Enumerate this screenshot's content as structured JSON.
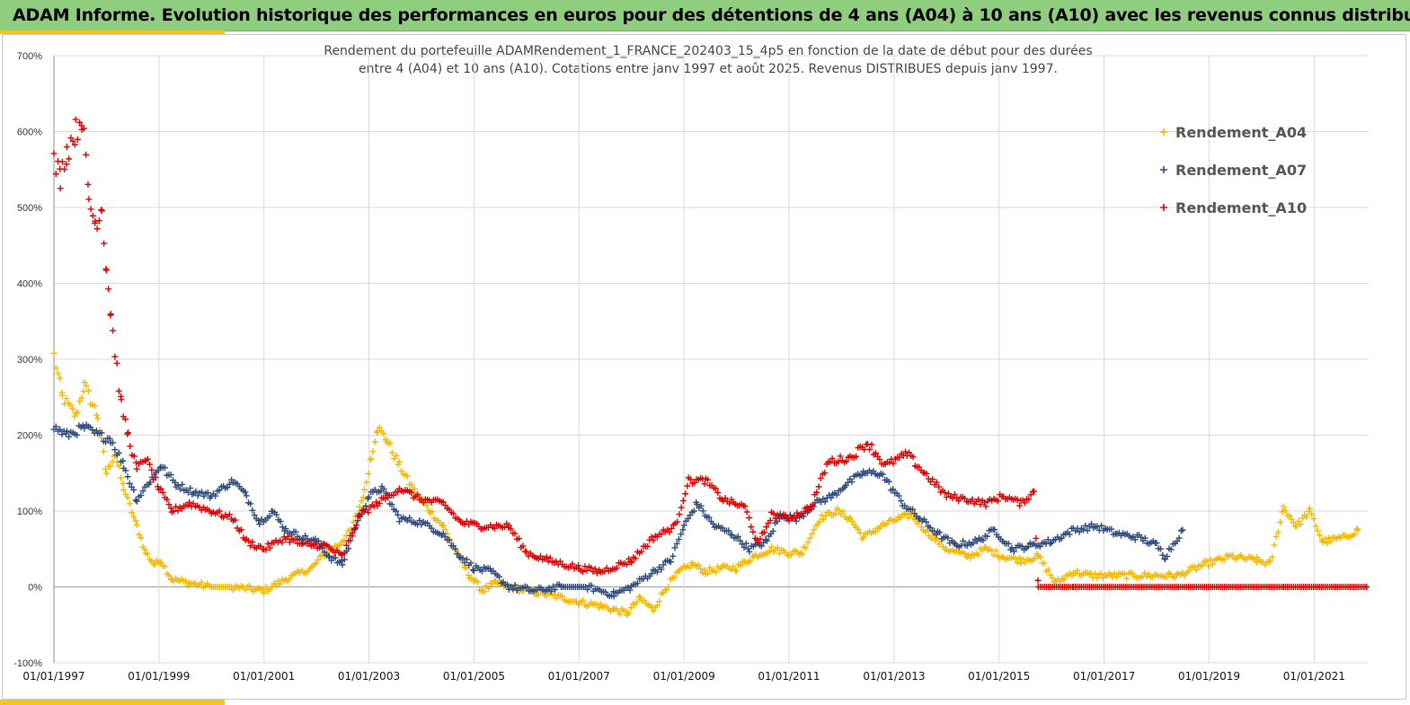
{
  "header": {
    "title": "ADAM Informe. Evolution historique des performances en euros pour des détentions de 4 ans (A04) à 10 ans (A10) avec les revenus connus distribués"
  },
  "chart_data": {
    "type": "scatter",
    "title_line1": "Rendement du portefeuille ADAMRendement_1_FRANCE_202403_15_4p5  en fonction de la date de début pour des durées",
    "title_line2": "entre 4 (A04) et 10 ans (A10). Cotations  entre janv 1997 et août 2025. Revenus DISTRIBUES depuis janv 1997.",
    "x_type": "date",
    "x_range": [
      "1997-01-01",
      "2022-01-15"
    ],
    "x_tick_labels": [
      "01/01/1997",
      "01/01/1999",
      "01/01/2001",
      "01/01/2003",
      "01/01/2005",
      "01/01/2007",
      "01/01/2009",
      "01/01/2011",
      "01/01/2013",
      "01/01/2015",
      "01/01/2017",
      "01/01/2019",
      "01/01/2021"
    ],
    "ylim": [
      -100,
      700
    ],
    "y_tick_labels": [
      "700%",
      "600%",
      "500%",
      "400%",
      "300%",
      "200%",
      "100%",
      "0%",
      "-100%"
    ],
    "grid": true,
    "legend_position": "top-right",
    "marker": "+",
    "series": [
      {
        "name": "Rendement_A04",
        "color": "#f5b800",
        "points": [
          [
            "1997-01-01",
            305
          ],
          [
            "1997-03-01",
            250
          ],
          [
            "1997-06-01",
            225
          ],
          [
            "1997-08-01",
            265
          ],
          [
            "1997-11-01",
            225
          ],
          [
            "1998-01-01",
            150
          ],
          [
            "1998-03-01",
            175
          ],
          [
            "1998-05-01",
            130
          ],
          [
            "1998-08-01",
            80
          ],
          [
            "1998-10-01",
            45
          ],
          [
            "1998-12-01",
            30
          ],
          [
            "1999-01-15",
            35
          ],
          [
            "1999-04-01",
            10
          ],
          [
            "1999-08-01",
            5
          ],
          [
            "2000-01-01",
            0
          ],
          [
            "2000-06-01",
            0
          ],
          [
            "2001-01-01",
            -5
          ],
          [
            "2001-06-01",
            10
          ],
          [
            "2001-12-01",
            25
          ],
          [
            "2002-03-01",
            45
          ],
          [
            "2002-06-01",
            55
          ],
          [
            "2002-09-01",
            75
          ],
          [
            "2002-12-01",
            125
          ],
          [
            "2003-01-15",
            170
          ],
          [
            "2003-03-01",
            210
          ],
          [
            "2003-05-01",
            195
          ],
          [
            "2003-08-01",
            160
          ],
          [
            "2003-11-01",
            130
          ],
          [
            "2004-03-01",
            100
          ],
          [
            "2004-06-01",
            80
          ],
          [
            "2004-09-01",
            45
          ],
          [
            "2004-12-01",
            15
          ],
          [
            "2005-03-01",
            -5
          ],
          [
            "2005-06-01",
            5
          ],
          [
            "2005-09-01",
            0
          ],
          [
            "2006-01-01",
            -5
          ],
          [
            "2006-06-01",
            -10
          ],
          [
            "2007-01-01",
            -20
          ],
          [
            "2007-06-01",
            -25
          ],
          [
            "2007-09-01",
            -30
          ],
          [
            "2007-12-01",
            -35
          ],
          [
            "2008-03-01",
            -15
          ],
          [
            "2008-06-01",
            -30
          ],
          [
            "2008-09-01",
            0
          ],
          [
            "2008-12-01",
            20
          ],
          [
            "2009-03-01",
            30
          ],
          [
            "2009-06-01",
            20
          ],
          [
            "2009-10-01",
            25
          ],
          [
            "2010-01-01",
            25
          ],
          [
            "2010-05-01",
            40
          ],
          [
            "2010-09-01",
            50
          ],
          [
            "2011-01-01",
            45
          ],
          [
            "2011-04-01",
            45
          ],
          [
            "2011-08-01",
            90
          ],
          [
            "2011-12-01",
            100
          ],
          [
            "2012-03-01",
            90
          ],
          [
            "2012-06-01",
            65
          ],
          [
            "2012-10-01",
            80
          ],
          [
            "2013-02-01",
            90
          ],
          [
            "2013-05-01",
            95
          ],
          [
            "2013-09-01",
            70
          ],
          [
            "2014-01-01",
            50
          ],
          [
            "2014-06-01",
            40
          ],
          [
            "2014-10-01",
            50
          ],
          [
            "2015-02-01",
            40
          ],
          [
            "2015-06-01",
            35
          ],
          [
            "2015-10-01",
            40
          ],
          [
            "2016-02-01",
            5
          ],
          [
            "2016-06-01",
            20
          ],
          [
            "2016-10-01",
            15
          ],
          [
            "2017-03-01",
            15
          ],
          [
            "2017-08-01",
            15
          ],
          [
            "2018-01-01",
            15
          ],
          [
            "2018-06-01",
            15
          ],
          [
            "2018-12-01",
            30
          ],
          [
            "2019-06-01",
            40
          ],
          [
            "2019-12-01",
            35
          ],
          [
            "2020-03-01",
            30
          ],
          [
            "2020-06-01",
            105
          ],
          [
            "2020-09-01",
            80
          ],
          [
            "2020-12-01",
            100
          ],
          [
            "2021-03-01",
            60
          ],
          [
            "2021-08-01",
            65
          ],
          [
            "2021-11-01",
            75
          ]
        ]
      },
      {
        "name": "Rendement_A07",
        "color": "#2e4a7d",
        "points": [
          [
            "1997-01-01",
            210
          ],
          [
            "1997-04-01",
            200
          ],
          [
            "1997-08-01",
            210
          ],
          [
            "1997-11-01",
            200
          ],
          [
            "1998-02-01",
            195
          ],
          [
            "1998-05-01",
            160
          ],
          [
            "1998-08-01",
            115
          ],
          [
            "1998-11-01",
            140
          ],
          [
            "1999-01-15",
            160
          ],
          [
            "1999-05-01",
            135
          ],
          [
            "1999-09-01",
            125
          ],
          [
            "2000-01-01",
            120
          ],
          [
            "2000-06-01",
            140
          ],
          [
            "2000-09-01",
            120
          ],
          [
            "2000-12-01",
            85
          ],
          [
            "2001-03-01",
            100
          ],
          [
            "2001-06-01",
            75
          ],
          [
            "2001-10-01",
            65
          ],
          [
            "2002-01-01",
            60
          ],
          [
            "2002-04-01",
            40
          ],
          [
            "2002-07-01",
            30
          ],
          [
            "2002-10-01",
            80
          ],
          [
            "2003-01-01",
            120
          ],
          [
            "2003-04-01",
            130
          ],
          [
            "2003-08-01",
            90
          ],
          [
            "2004-01-01",
            85
          ],
          [
            "2004-06-01",
            70
          ],
          [
            "2004-10-01",
            40
          ],
          [
            "2005-01-01",
            25
          ],
          [
            "2005-05-01",
            20
          ],
          [
            "2005-09-01",
            0
          ],
          [
            "2006-03-01",
            -5
          ],
          [
            "2006-09-01",
            0
          ],
          [
            "2007-03-01",
            0
          ],
          [
            "2007-09-01",
            -10
          ],
          [
            "2008-01-01",
            0
          ],
          [
            "2008-06-01",
            20
          ],
          [
            "2008-10-01",
            35
          ],
          [
            "2009-01-01",
            80
          ],
          [
            "2009-04-01",
            110
          ],
          [
            "2009-08-01",
            80
          ],
          [
            "2009-12-01",
            70
          ],
          [
            "2010-04-01",
            50
          ],
          [
            "2010-08-01",
            60
          ],
          [
            "2010-11-01",
            95
          ],
          [
            "2011-03-01",
            90
          ],
          [
            "2011-07-01",
            110
          ],
          [
            "2011-11-01",
            120
          ],
          [
            "2012-02-01",
            135
          ],
          [
            "2012-06-01",
            150
          ],
          [
            "2012-10-01",
            150
          ],
          [
            "2013-03-01",
            110
          ],
          [
            "2013-07-01",
            90
          ],
          [
            "2013-11-01",
            70
          ],
          [
            "2014-03-01",
            55
          ],
          [
            "2014-08-01",
            60
          ],
          [
            "2014-12-01",
            75
          ],
          [
            "2015-04-01",
            50
          ],
          [
            "2015-09-01",
            55
          ],
          [
            "2016-01-01",
            60
          ],
          [
            "2016-06-01",
            75
          ],
          [
            "2016-11-01",
            80
          ],
          [
            "2017-04-01",
            70
          ],
          [
            "2017-09-01",
            65
          ],
          [
            "2018-01-01",
            55
          ],
          [
            "2018-03-01",
            40
          ],
          [
            "2018-07-01",
            75
          ]
        ]
      },
      {
        "name": "Rendement_A10",
        "color": "#e00000",
        "points": [
          [
            "1997-01-01",
            560
          ],
          [
            "1997-02-15",
            540
          ],
          [
            "1997-04-01",
            575
          ],
          [
            "1997-06-01",
            600
          ],
          [
            "1997-07-15",
            620
          ],
          [
            "1997-09-01",
            510
          ],
          [
            "1997-10-15",
            480
          ],
          [
            "1997-12-01",
            500
          ],
          [
            "1998-01-01",
            420
          ],
          [
            "1998-02-01",
            360
          ],
          [
            "1998-03-01",
            310
          ],
          [
            "1998-04-15",
            240
          ],
          [
            "1998-06-01",
            200
          ],
          [
            "1998-08-01",
            155
          ],
          [
            "1998-10-01",
            170
          ],
          [
            "1999-01-01",
            130
          ],
          [
            "1999-04-01",
            100
          ],
          [
            "1999-08-01",
            110
          ],
          [
            "2000-01-01",
            100
          ],
          [
            "2000-06-01",
            90
          ],
          [
            "2000-09-01",
            60
          ],
          [
            "2001-01-01",
            50
          ],
          [
            "2001-06-01",
            65
          ],
          [
            "2001-10-01",
            55
          ],
          [
            "2002-03-01",
            55
          ],
          [
            "2002-07-01",
            40
          ],
          [
            "2002-11-01",
            95
          ],
          [
            "2003-03-01",
            110
          ],
          [
            "2003-08-01",
            130
          ],
          [
            "2004-01-01",
            115
          ],
          [
            "2004-06-01",
            110
          ],
          [
            "2004-10-01",
            85
          ],
          [
            "2005-03-01",
            80
          ],
          [
            "2005-09-01",
            80
          ],
          [
            "2006-01-01",
            45
          ],
          [
            "2006-06-01",
            35
          ],
          [
            "2007-01-01",
            25
          ],
          [
            "2007-06-01",
            20
          ],
          [
            "2008-01-01",
            35
          ],
          [
            "2008-06-01",
            65
          ],
          [
            "2008-11-01",
            80
          ],
          [
            "2009-02-01",
            140
          ],
          [
            "2009-06-01",
            140
          ],
          [
            "2009-10-01",
            115
          ],
          [
            "2010-03-01",
            105
          ],
          [
            "2010-06-01",
            55
          ],
          [
            "2010-09-01",
            95
          ],
          [
            "2011-01-01",
            90
          ],
          [
            "2011-06-01",
            105
          ],
          [
            "2011-10-01",
            165
          ],
          [
            "2012-03-01",
            170
          ],
          [
            "2012-07-01",
            190
          ],
          [
            "2012-11-01",
            160
          ],
          [
            "2013-04-01",
            175
          ],
          [
            "2013-08-01",
            150
          ],
          [
            "2014-01-01",
            120
          ],
          [
            "2014-06-01",
            115
          ],
          [
            "2014-10-01",
            110
          ],
          [
            "2015-02-01",
            120
          ],
          [
            "2015-06-01",
            110
          ],
          [
            "2015-09-01",
            125
          ],
          [
            "2015-10-01",
            0
          ],
          [
            "2016-06-01",
            0
          ],
          [
            "2017-06-01",
            0
          ],
          [
            "2018-06-01",
            0
          ],
          [
            "2019-06-01",
            0
          ],
          [
            "2020-06-01",
            0
          ],
          [
            "2021-06-01",
            0
          ],
          [
            "2022-01-01",
            0
          ]
        ]
      }
    ]
  }
}
